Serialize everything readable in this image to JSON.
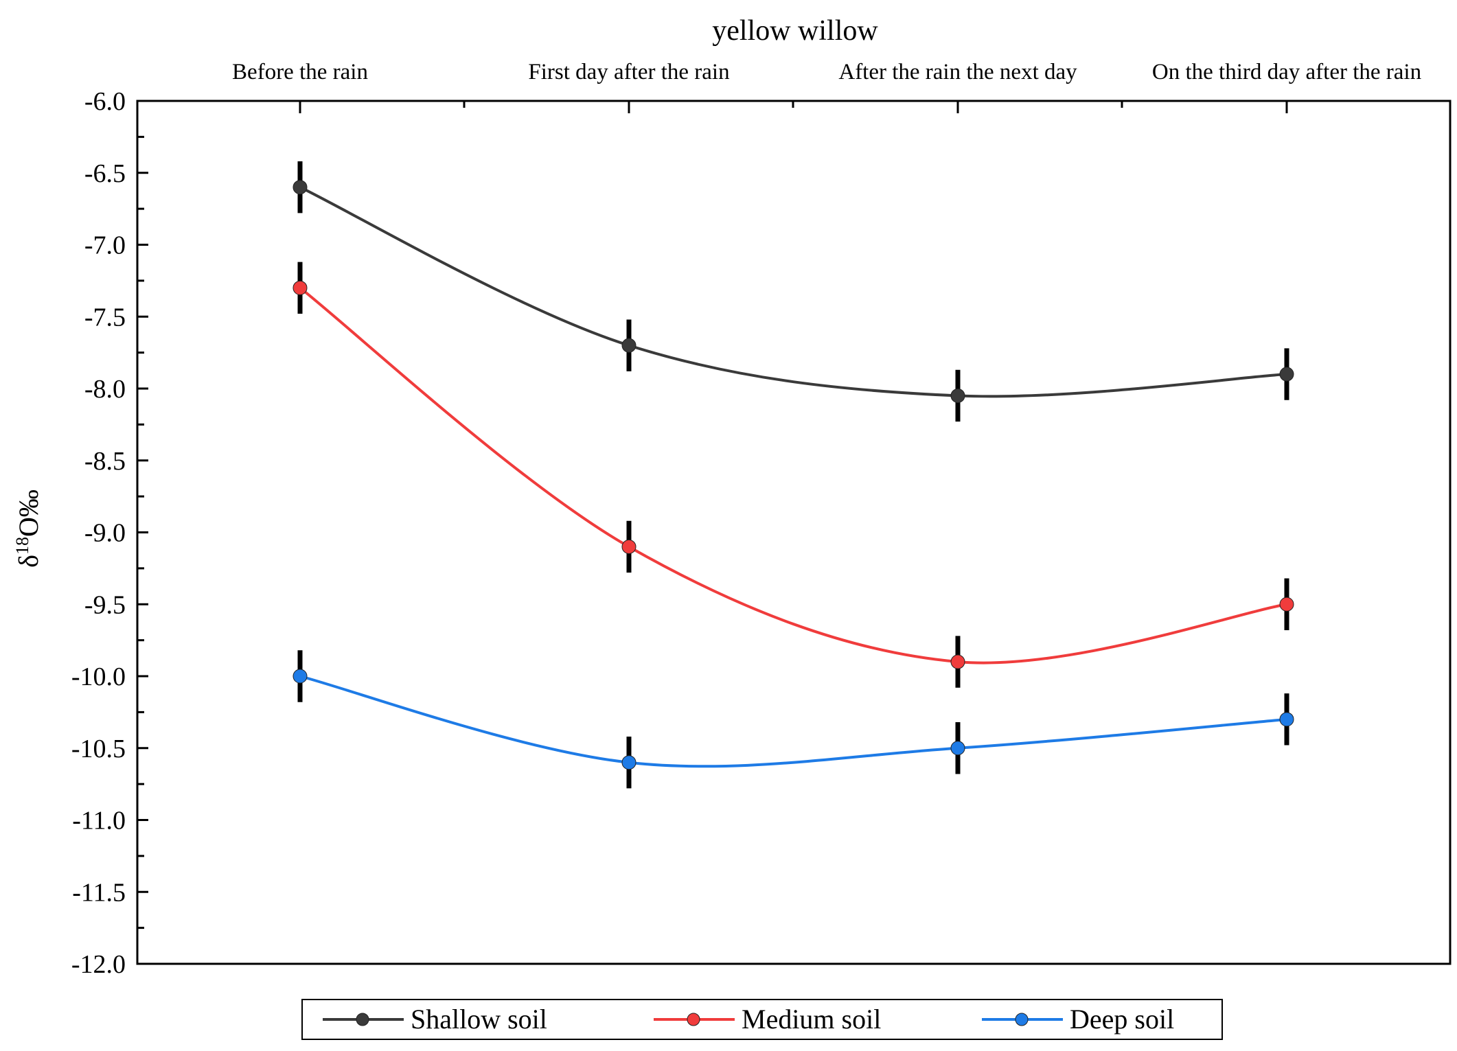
{
  "chart_data": {
    "type": "line",
    "title": "yellow willow",
    "ylabel": "δ18O‰",
    "ylabel_main": "δ",
    "ylabel_sup": "18",
    "ylabel_tail": "O‰",
    "xlabel": "",
    "categories": [
      "Before the rain",
      "First day after the rain",
      "After the rain the next day",
      "On the third day after the rain"
    ],
    "ylim": [
      -12.0,
      -6.0
    ],
    "yticks": [
      "-6.0",
      "-6.5",
      "-7.0",
      "-7.5",
      "-8.0",
      "-8.5",
      "-9.0",
      "-9.5",
      "-10.0",
      "-10.5",
      "-11.0",
      "-11.5",
      "-12.0"
    ],
    "grid": false,
    "legend_position": "bottom",
    "series": [
      {
        "name": "Shallow soil",
        "color": "#3a3a3a",
        "values": [
          -6.6,
          -7.7,
          -8.05,
          -7.9
        ],
        "errors": [
          0.18,
          0.18,
          0.18,
          0.18
        ]
      },
      {
        "name": "Medium soil",
        "color": "#f03c3c",
        "values": [
          -7.3,
          -9.1,
          -9.9,
          -9.5
        ],
        "errors": [
          0.18,
          0.18,
          0.18,
          0.18
        ]
      },
      {
        "name": "Deep soil",
        "color": "#1e7be6",
        "values": [
          -10.0,
          -10.6,
          -10.5,
          -10.3
        ],
        "errors": [
          0.18,
          0.18,
          0.18,
          0.18
        ]
      }
    ]
  }
}
